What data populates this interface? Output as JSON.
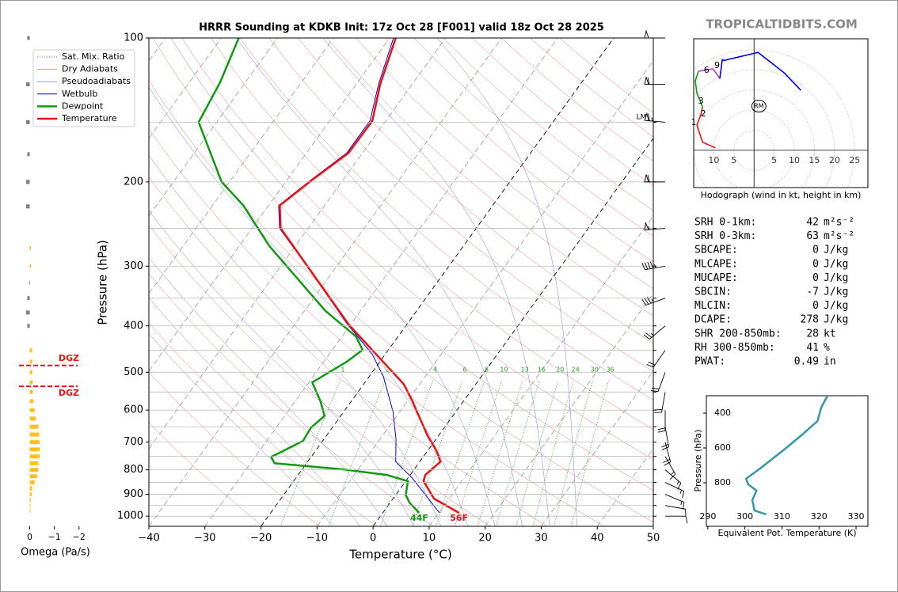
{
  "watermark": "TROPICALTIDBITS.COM",
  "chart_data": [
    {
      "type": "skewt",
      "title": "HRRR Sounding at KDKB Init: 17z Oct 28 [F001] valid 18z Oct 28 2025",
      "xlabel": "Temperature (°C)",
      "ylabel": "Pressure (hPa)",
      "xlim": [
        -40,
        50
      ],
      "ylim": [
        1050,
        100
      ],
      "log_y": true,
      "xticks": [
        {
          "value": -40,
          "label": "−40"
        },
        {
          "value": -30,
          "label": "−30"
        },
        {
          "value": -20,
          "label": "−20"
        },
        {
          "value": -10,
          "label": "−10"
        },
        0,
        10,
        20,
        30,
        40,
        50
      ],
      "yticks": [
        100,
        200,
        300,
        400,
        500,
        600,
        700,
        800,
        900,
        1000
      ],
      "minor_yticks": [
        150,
        250,
        350,
        450,
        550,
        650,
        750,
        850,
        950
      ],
      "isotherms": [
        -110,
        -100,
        -90,
        -80,
        -70,
        -60,
        -50,
        -40,
        -30,
        -20,
        -10,
        0,
        10,
        20,
        30,
        40,
        50
      ],
      "highlighted_isotherms": [
        -20,
        0
      ],
      "reference_lines": [
        {
          "name": "Sat. Mix. Ratio",
          "color": "#2ca02c",
          "values": [
            1,
            2,
            4,
            6,
            8,
            10,
            13,
            16,
            20,
            24,
            30,
            36
          ]
        },
        {
          "name": "Dry Adiabats",
          "color": "#d9534f",
          "values": [
            250,
            260,
            270,
            280,
            290,
            300,
            310,
            320,
            330,
            340,
            350,
            360,
            370,
            380,
            390,
            400,
            410,
            420,
            430,
            440,
            450,
            460,
            470
          ]
        },
        {
          "name": "Pseudoadiabats",
          "color": "#5555cc",
          "values": [
            -10,
            -5,
            0,
            5,
            10,
            15,
            20,
            25,
            30,
            35
          ]
        }
      ],
      "series": [
        {
          "name": "Wetbulb",
          "color": "#0000ee",
          "pressure": [
            984,
            869,
            830,
            769,
            691,
            605,
            510,
            458,
            397,
            302,
            250,
            224,
            198,
            174,
            149,
            125,
            100
          ],
          "values": [
            10.1,
            3.2,
            0.6,
            -4.3,
            -7.1,
            -11.2,
            -17.5,
            -22.4,
            -30.6,
            -45.0,
            -55.1,
            -58.2,
            -55.7,
            -52.8,
            -52.8,
            -56.0,
            -59.3
          ]
        },
        {
          "name": "Dewpoint",
          "color": "#119911",
          "surface_label": "44F",
          "pressure": [
            984,
            938,
            903,
            845,
            820,
            799,
            775,
            752,
            696,
            653,
            617,
            575,
            525,
            475,
            449,
            421,
            372,
            272,
            224,
            200,
            150,
            124,
            100
          ],
          "values": [
            6.5,
            3.5,
            1.8,
            0.4,
            -4.2,
            -12.4,
            -25.7,
            -27.1,
            -23.5,
            -23.8,
            -22.9,
            -25.5,
            -29.4,
            -25.9,
            -24.6,
            -27.5,
            -36.3,
            -54.7,
            -64.5,
            -71.4,
            -83.2,
            -84.5,
            -86.9
          ]
        },
        {
          "name": "Temperature",
          "color": "#ee1111",
          "surface_label": "56F",
          "pressure": [
            984,
            919,
            845,
            820,
            769,
            732,
            678,
            571,
            529,
            458,
            397,
            302,
            250,
            224,
            198,
            174,
            149,
            125,
            100
          ],
          "values": [
            13.6,
            7.3,
            3.2,
            2.7,
            3.7,
            1.7,
            -2.0,
            -9.4,
            -12.9,
            -21.7,
            -30.4,
            -44.9,
            -54.9,
            -58.0,
            -55.5,
            -52.5,
            -52.4,
            -55.7,
            -58.9
          ]
        }
      ],
      "annotations": [
        {
          "text": "LM"
        }
      ],
      "wind_barbs": {
        "pressure": [
          1000,
          950,
          900,
          850,
          800,
          750,
          700,
          650,
          600,
          550,
          500,
          450,
          400,
          350,
          300,
          250,
          200,
          150,
          125,
          100
        ],
        "direction": [
          90,
          100,
          113,
          115,
          130,
          150,
          165,
          170,
          180,
          190,
          200,
          215,
          230,
          250,
          260,
          265,
          270,
          275,
          270,
          270
        ],
        "speed": [
          10,
          12,
          15,
          17,
          16,
          17,
          20,
          22,
          24,
          24,
          22,
          20,
          25,
          35,
          45,
          55,
          60,
          65,
          60,
          50
        ]
      }
    },
    {
      "type": "bar",
      "orientation": "horizontal",
      "xlabel": "Omega (Pa/s)",
      "xlim": [
        0.5,
        -2.2
      ],
      "ylim": [
        1050,
        100
      ],
      "log_y": true,
      "xticks": [
        0,
        {
          "value": -1,
          "label": "−1"
        },
        {
          "value": -2,
          "label": "−2"
        }
      ],
      "color_rising": "#ffbf1f",
      "color_sinking": "#808080",
      "pressure": [
        100,
        125,
        150,
        175,
        200,
        225,
        275,
        300,
        325,
        350,
        375,
        400,
        450,
        475,
        500,
        525,
        550,
        575,
        600,
        625,
        650,
        675,
        700,
        725,
        750,
        775,
        800,
        825,
        850,
        875,
        900,
        925,
        950,
        975
      ],
      "values": [
        0.1,
        0.15,
        0.15,
        0.1,
        0.15,
        0.15,
        -0.05,
        -0.05,
        0.02,
        0.1,
        0.15,
        0.1,
        -0.1,
        -0.1,
        -0.1,
        -0.12,
        -0.12,
        -0.15,
        -0.2,
        -0.25,
        -0.35,
        -0.38,
        -0.4,
        -0.4,
        -0.4,
        -0.35,
        -0.35,
        -0.3,
        -0.2,
        -0.1,
        -0.08,
        -0.05,
        -0.03,
        -0.02
      ],
      "annotations": [
        {
          "text": "DGZ",
          "pressure": 484
        },
        {
          "text": "DGZ",
          "pressure": 535
        }
      ]
    },
    {
      "type": "hodograph",
      "xlabel": "Hodograph (wind in kt, height in km)",
      "xlim": [
        -15,
        28.3
      ],
      "ylim": [
        -9.3,
        27.8
      ],
      "xticks": [
        {
          "value": -10,
          "label": "10"
        },
        {
          "value": -5,
          "label": "5"
        },
        5,
        10,
        15,
        20,
        25
      ],
      "series": [
        {
          "color": "#ee1111",
          "u": [
            -9.6,
            -12.8,
            -14.2,
            -13.2,
            -12.8
          ],
          "v": [
            0.6,
            2.0,
            6.3,
            8.9,
            10.8
          ]
        },
        {
          "color": "#119911",
          "u": [
            -12.8,
            -14.2,
            -14.6,
            -13.8
          ],
          "v": [
            10.8,
            14.2,
            17.3,
            19.7
          ]
        },
        {
          "color": "#cc33cc",
          "u": [
            -13.8,
            -10.2,
            -8.5
          ],
          "v": [
            19.7,
            20.3,
            17.9
          ]
        },
        {
          "color": "#0000ee",
          "u": [
            -8.5,
            -7.9,
            -7.5,
            1.0,
            7.5,
            11.6
          ],
          "v": [
            17.9,
            22.6,
            22.4,
            24.4,
            19.3,
            15.0
          ]
        }
      ],
      "height_labels": [
        {
          "height": 1,
          "u": -15.0,
          "v": 6.9
        },
        {
          "height": 2,
          "u": -12.6,
          "v": 9.1
        },
        {
          "height": 3,
          "u": -13.2,
          "v": 12.2
        },
        {
          "height": 6,
          "u": -11.8,
          "v": 19.9
        },
        {
          "height": 9,
          "u": -9.2,
          "v": 21.1
        }
      ],
      "storm_motion": {
        "label": "RM",
        "u": 1.2,
        "v": 11.0
      }
    },
    {
      "type": "line",
      "xlabel": "Equivalent Pot. Temperature (K)",
      "ylabel": "Pressure (hPa)",
      "xlim": [
        289.6,
        333.2
      ],
      "ylim": [
        1050,
        300
      ],
      "xticks": [
        290,
        300,
        310,
        320,
        330
      ],
      "yticks": [
        400,
        600,
        800
      ],
      "color": "#3399aa",
      "pressure": [
        300,
        368,
        445,
        527,
        609,
        718,
        777,
        809,
        845,
        900,
        959,
        982
      ],
      "values": [
        322.3,
        320.6,
        319.6,
        315.3,
        310.6,
        304.1,
        300.3,
        300.9,
        303.1,
        302.0,
        302.6,
        305.8
      ]
    }
  ],
  "indices": [
    {
      "label": "SRH 0-1km:",
      "value": 42,
      "unit": "m²s⁻²",
      "color": "#000000"
    },
    {
      "label": "SRH 0-3km:",
      "value": 63,
      "unit": "m²s⁻²",
      "color": "#000000"
    },
    {
      "label": "SBCAPE:",
      "value": 0,
      "unit": "J/kg",
      "color": "#000000"
    },
    {
      "label": "MLCAPE:",
      "value": 0,
      "unit": "J/kg",
      "color": "#000000"
    },
    {
      "label": "MUCAPE:",
      "value": 0,
      "unit": "J/kg",
      "color": "#000000"
    },
    {
      "label": "SBCIN:",
      "value": -7,
      "unit": "J/kg",
      "color": "#3333cc"
    },
    {
      "label": "MLCIN:",
      "value": 0,
      "unit": "J/kg",
      "color": "#000000"
    },
    {
      "label": "DCAPE:",
      "value": 278,
      "unit": "J/kg",
      "color": "#3333cc"
    },
    {
      "label": "SHR 200-850mb:",
      "value": 28,
      "unit": "kt",
      "color": "#cc5522"
    },
    {
      "label": "RH 300-850mb:",
      "value": 41,
      "unit": "%",
      "color": "#8b5a00"
    },
    {
      "label": "PWAT:",
      "value": 0.49,
      "unit": "in",
      "color": "#000000"
    }
  ]
}
